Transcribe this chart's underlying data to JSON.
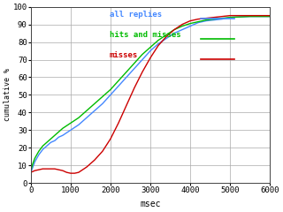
{
  "xlabel": "msec",
  "ylabel": "cumulative %",
  "xlim": [
    0,
    6000
  ],
  "ylim": [
    0,
    100
  ],
  "xticks": [
    0,
    1000,
    2000,
    3000,
    4000,
    5000,
    6000
  ],
  "yticks": [
    0,
    10,
    20,
    30,
    40,
    50,
    60,
    70,
    80,
    90,
    100
  ],
  "legend": [
    {
      "label": "all replies",
      "color": "#4488ff"
    },
    {
      "label": "hits and misses",
      "color": "#00bb00"
    },
    {
      "label": "misses",
      "color": "#cc0000"
    }
  ],
  "background_color": "#ffffff",
  "grid_color": "#aaaaaa",
  "all_replies_x": [
    0,
    50,
    100,
    200,
    300,
    400,
    500,
    600,
    700,
    800,
    1000,
    1200,
    1400,
    1600,
    1800,
    2000,
    2200,
    2400,
    2600,
    2800,
    3000,
    3200,
    3400,
    3600,
    3800,
    4000,
    4200,
    4400,
    4800,
    5000,
    5500,
    6000
  ],
  "all_replies_y": [
    6,
    9,
    12,
    16,
    19,
    21,
    23,
    24,
    26,
    27,
    30,
    33,
    37,
    41,
    45,
    50,
    55,
    60,
    65,
    70,
    75,
    79,
    82,
    85,
    87,
    89,
    91,
    92,
    93,
    94,
    94.5,
    94.5
  ],
  "hits_misses_x": [
    0,
    50,
    100,
    200,
    300,
    400,
    500,
    600,
    700,
    800,
    1000,
    1200,
    1400,
    1600,
    1800,
    2000,
    2200,
    2400,
    2600,
    2800,
    3000,
    3200,
    3400,
    3600,
    3800,
    4000,
    4200,
    4400,
    4800,
    5000,
    5500,
    6000
  ],
  "hits_misses_y": [
    7,
    11,
    14,
    18,
    21,
    23,
    25,
    27,
    29,
    31,
    34,
    37,
    41,
    45,
    49,
    53,
    58,
    63,
    68,
    73,
    77,
    81,
    84,
    87,
    89,
    90.5,
    91.5,
    92.5,
    93.5,
    94,
    94.5,
    94.5
  ],
  "misses_x": [
    0,
    100,
    200,
    300,
    400,
    500,
    600,
    700,
    800,
    850,
    900,
    1000,
    1100,
    1200,
    1400,
    1600,
    1800,
    2000,
    2200,
    2400,
    2600,
    2800,
    3000,
    3200,
    3400,
    3600,
    3800,
    4000,
    4200,
    4400,
    4600,
    4800,
    5000,
    5500,
    6000
  ],
  "misses_y": [
    6,
    7,
    7.5,
    8,
    8,
    8,
    8,
    7.5,
    7,
    6.5,
    6,
    5.5,
    5.5,
    6,
    9,
    13,
    18,
    25,
    34,
    44,
    54,
    63,
    71,
    78,
    83,
    87,
    90,
    92,
    93,
    93.5,
    94,
    94.5,
    95,
    95,
    95
  ]
}
